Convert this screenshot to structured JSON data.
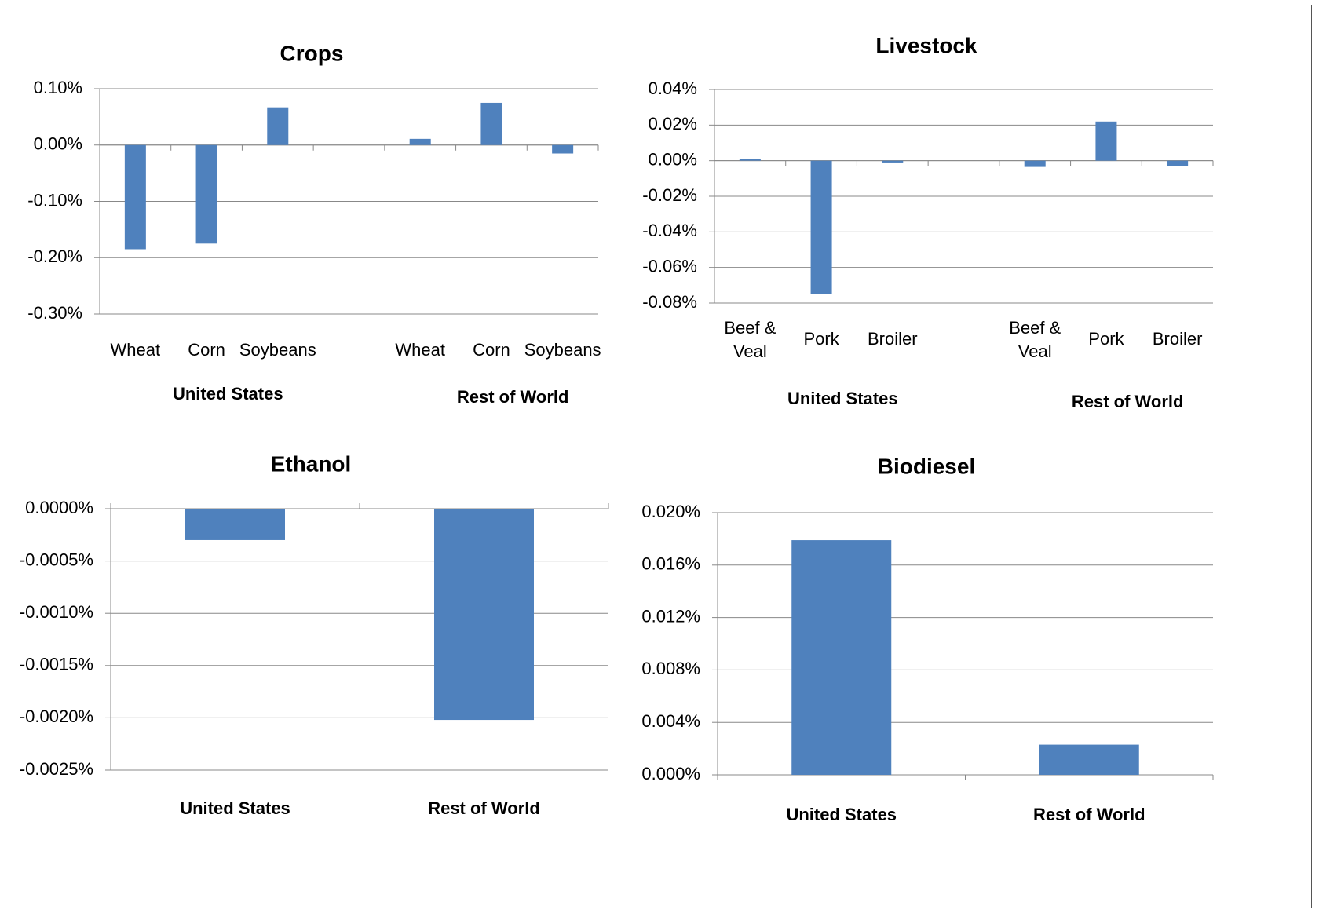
{
  "colors": {
    "bar": "#4f81bd",
    "grid": "#888888"
  },
  "chart_data": [
    {
      "id": "crops",
      "type": "bar",
      "title": "Crops",
      "categories": [
        "Wheat",
        "Corn",
        "Soybeans",
        "",
        "Wheat",
        "Corn",
        "Soybeans"
      ],
      "values": [
        -0.185,
        -0.175,
        0.067,
        null,
        0.011,
        0.075,
        -0.015
      ],
      "groups": [
        "United States",
        "Rest of World"
      ],
      "ylim": [
        -0.3,
        0.1
      ],
      "yticks": [
        "0.10%",
        "0.00%",
        "-0.10%",
        "-0.20%",
        "-0.30%"
      ],
      "unit": "%",
      "grid": true
    },
    {
      "id": "livestock",
      "type": "bar",
      "title": "Livestock",
      "categories": [
        "Beef & Veal",
        "Pork",
        "Broiler",
        "",
        "Beef & Veal",
        "Pork",
        "Broiler"
      ],
      "values": [
        0.001,
        -0.075,
        -0.001,
        null,
        -0.0035,
        0.022,
        -0.003
      ],
      "groups": [
        "United States",
        "Rest of World"
      ],
      "ylim": [
        -0.08,
        0.04
      ],
      "yticks": [
        "0.04%",
        "0.02%",
        "0.00%",
        "-0.02%",
        "-0.04%",
        "-0.06%",
        "-0.08%"
      ],
      "unit": "%",
      "grid": true
    },
    {
      "id": "ethanol",
      "type": "bar",
      "title": "Ethanol",
      "categories": [
        "United States",
        "Rest of World"
      ],
      "values": [
        -0.0003,
        -0.00202
      ],
      "ylim": [
        -0.0025,
        0.0
      ],
      "yticks": [
        "0.0000%",
        "-0.0005%",
        "-0.0010%",
        "-0.0015%",
        "-0.0020%",
        "-0.0025%"
      ],
      "unit": "%",
      "grid": true
    },
    {
      "id": "biodiesel",
      "type": "bar",
      "title": "Biodiesel",
      "categories": [
        "United States",
        "Rest of World"
      ],
      "values": [
        0.0179,
        0.0023
      ],
      "ylim": [
        0.0,
        0.02
      ],
      "yticks": [
        "0.020%",
        "0.016%",
        "0.012%",
        "0.008%",
        "0.004%",
        "0.000%"
      ],
      "unit": "%",
      "grid": true
    }
  ]
}
